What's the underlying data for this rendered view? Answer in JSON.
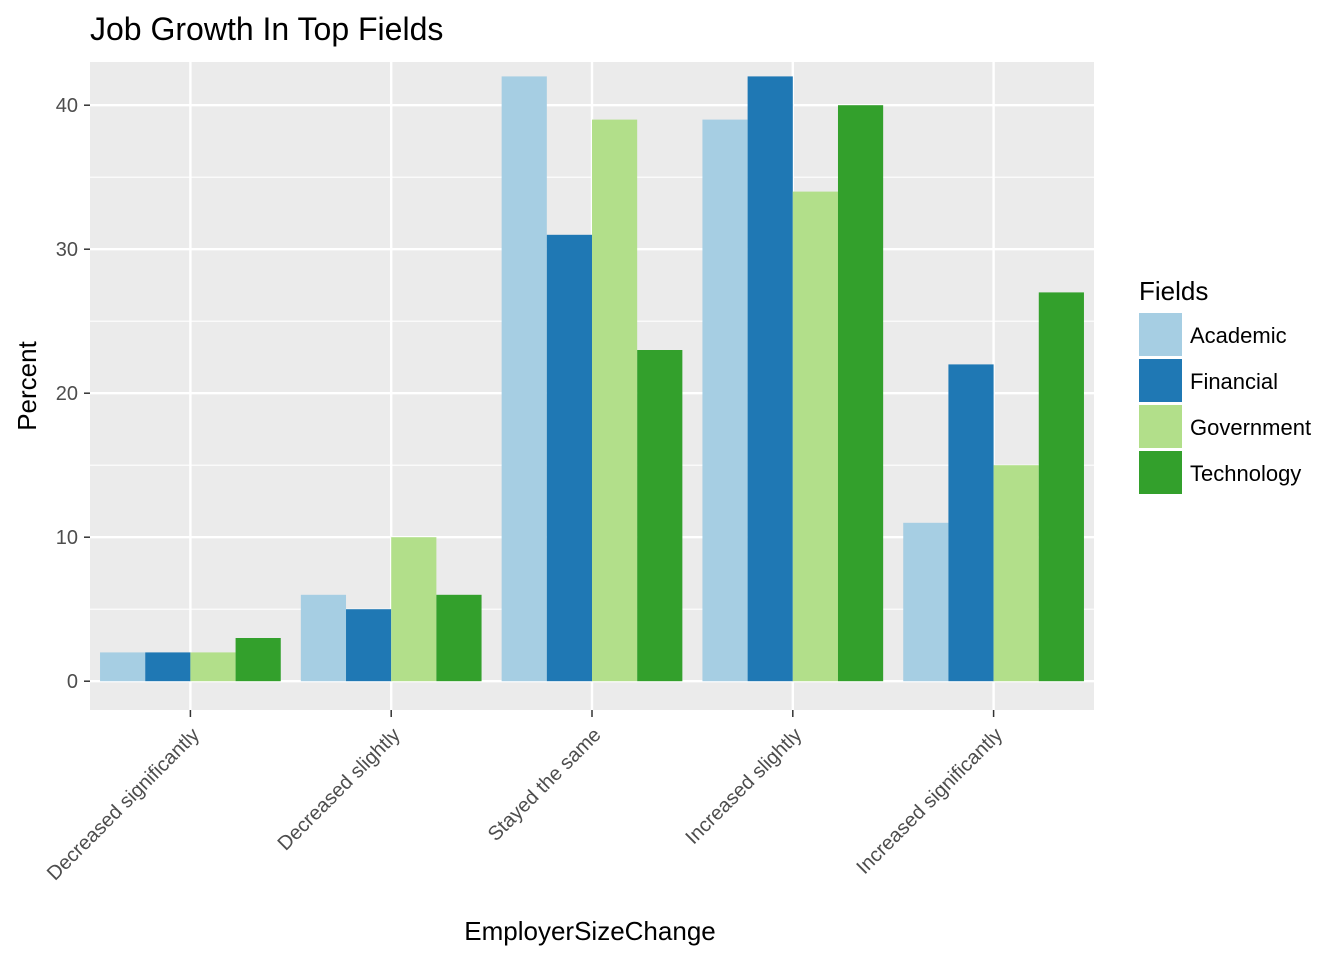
{
  "chart_data": {
    "type": "bar",
    "title": "Job Growth In Top Fields",
    "xlabel": "EmployerSizeChange",
    "ylabel": "Percent",
    "ylim": [
      -2,
      43
    ],
    "yticks": [
      0,
      10,
      20,
      30,
      40
    ],
    "categories": [
      "Decreased significantly",
      "Decreased slightly",
      "Stayed the same",
      "Increased slightly",
      "Increased significantly"
    ],
    "series": [
      {
        "name": "Academic",
        "color": "#a6cee3",
        "values": [
          2,
          6,
          42,
          39,
          11
        ]
      },
      {
        "name": "Financial",
        "color": "#1f78b4",
        "values": [
          2,
          5,
          31,
          42,
          22
        ]
      },
      {
        "name": "Government",
        "color": "#b2df8a",
        "values": [
          2,
          10,
          39,
          34,
          15
        ]
      },
      {
        "name": "Technology",
        "color": "#33a02c",
        "values": [
          3,
          6,
          23,
          40,
          27
        ]
      }
    ],
    "grid": true,
    "panel_background": "#ebebeb",
    "legend_title": "Fields",
    "legend_position": "right"
  }
}
